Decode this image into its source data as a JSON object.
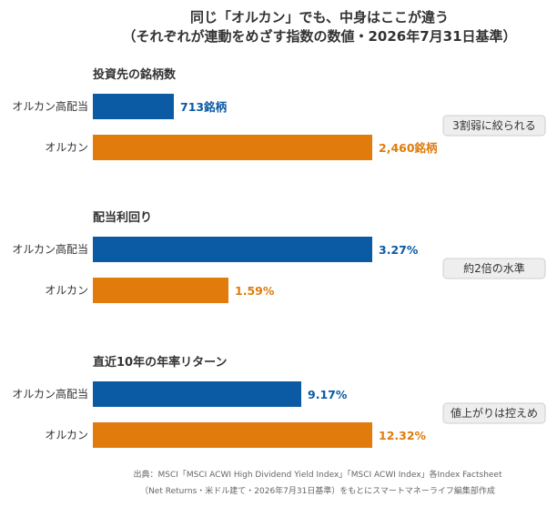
{
  "chart_data": {
    "type": "bar",
    "title_line1": "同じ「オルカン」でも、中身はここが違う",
    "title_line2": "（それぞれが連動をめざす指数の数値・2026年7月31日基準）",
    "source_line1": "出典：MSCI「MSCI ACWI High Dividend Yield Index」「MSCI ACWI Index」各Index Factsheet",
    "source_line2": "（Net Returns・米ドル建て・2026年7月31日基準）をもとにスマートマネーライフ編集部作成",
    "categories": [
      "オルカン高配当",
      "オルカン"
    ],
    "colors": {
      "高配当": "#0b5aa4",
      "オルカン": "#e07b0c",
      "note_bg": "#eeeeee",
      "note_border": "#cfcfcf"
    },
    "panels": [
      {
        "title": "投資先の銘柄数",
        "values": [
          713,
          2460
        ],
        "labels": [
          "713銘柄",
          "2,460銘柄"
        ],
        "note": "3割弱に絞られる"
      },
      {
        "title": "配当利回り",
        "values": [
          3.27,
          1.59
        ],
        "labels": [
          "3.27%",
          "1.59%"
        ],
        "note": "約2倍の水準"
      },
      {
        "title": "直近10年の年率リターン",
        "values": [
          9.17,
          12.32
        ],
        "labels": [
          "9.17%",
          "12.32%"
        ],
        "note": "値上がりは控えめ"
      }
    ]
  }
}
